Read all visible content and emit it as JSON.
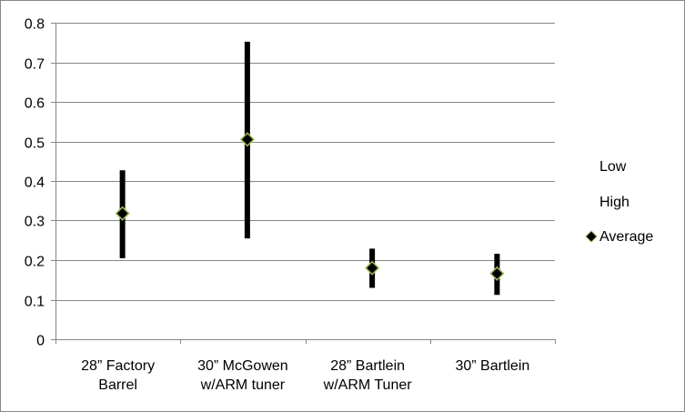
{
  "chart_data": {
    "type": "stock-hlc",
    "title": "",
    "xlabel": "",
    "ylabel": "",
    "ylim": [
      0,
      0.8
    ],
    "ytick_step": 0.1,
    "yticks": [
      "0",
      "0.1",
      "0.2",
      "0.3",
      "0.4",
      "0.5",
      "0.6",
      "0.7",
      "0.8"
    ],
    "grid": true,
    "legend_position": "right",
    "categories": [
      [
        "28” Factory",
        "Barrel"
      ],
      [
        "30” McGowen",
        "w/ARM tuner"
      ],
      [
        "28” Bartlein",
        "w/ARM Tuner"
      ],
      [
        "30” Bartlein"
      ]
    ],
    "series": [
      {
        "name": "Low",
        "values": [
          0.205,
          0.255,
          0.13,
          0.112
        ]
      },
      {
        "name": "High",
        "values": [
          0.427,
          0.752,
          0.229,
          0.216
        ]
      },
      {
        "name": "Average",
        "values": [
          0.318,
          0.505,
          0.18,
          0.166
        ]
      }
    ],
    "colors": {
      "range_bar": "#000000",
      "marker_fill": "#000000",
      "marker_stroke": "#9BBB59",
      "grid": "#868686"
    }
  }
}
